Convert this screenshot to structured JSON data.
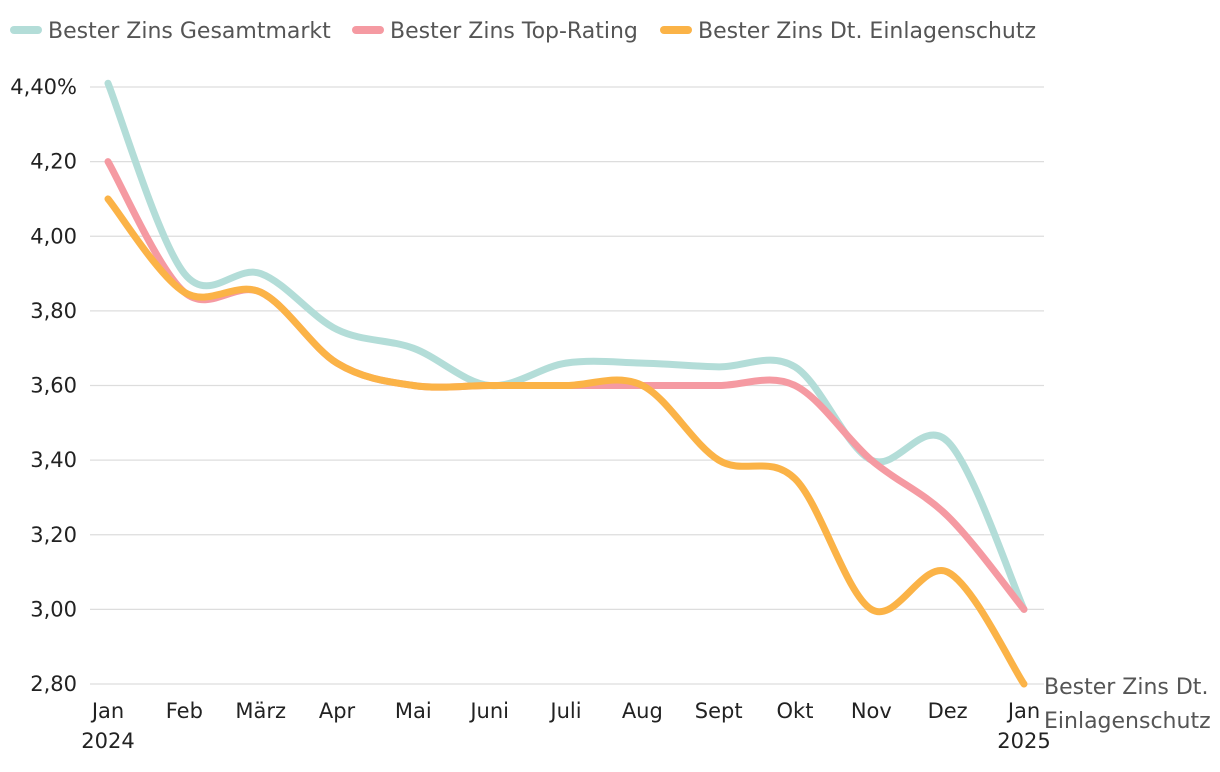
{
  "chart_data": {
    "type": "line",
    "title": "",
    "xlabel": "",
    "ylabel": "",
    "categories": [
      "Jan",
      "Feb",
      "März",
      "Apr",
      "Mai",
      "Juni",
      "Juli",
      "Aug",
      "Sept",
      "Okt",
      "Nov",
      "Dez",
      "Jan"
    ],
    "category_years": [
      "2024",
      "",
      "",
      "",
      "",
      "",
      "",
      "",
      "",
      "",
      "",
      "",
      "2025"
    ],
    "y_ticks": [
      {
        "value": 4.4,
        "label": "4,40%"
      },
      {
        "value": 4.2,
        "label": "4,20"
      },
      {
        "value": 4.0,
        "label": "4,00"
      },
      {
        "value": 3.8,
        "label": "3,80"
      },
      {
        "value": 3.6,
        "label": "3,60"
      },
      {
        "value": 3.4,
        "label": "3,40"
      },
      {
        "value": 3.2,
        "label": "3,20"
      },
      {
        "value": 3.0,
        "label": "3,00"
      },
      {
        "value": 2.8,
        "label": "2,80"
      }
    ],
    "ylim": [
      2.8,
      4.4
    ],
    "grid": true,
    "legend_position": "top",
    "end_label": {
      "series": 2,
      "lines": [
        "Bester Zins Dt.",
        "Einlagenschutz"
      ]
    },
    "series": [
      {
        "name": "Bester Zins Gesamtmarkt",
        "color": "#b3ddd8",
        "values": [
          4.41,
          3.9,
          3.9,
          3.75,
          3.7,
          3.6,
          3.66,
          3.66,
          3.65,
          3.65,
          3.4,
          3.45,
          3.0
        ]
      },
      {
        "name": "Bester Zins Top-Rating",
        "color": "#f59aa2",
        "values": [
          4.2,
          3.85,
          3.85,
          3.66,
          3.6,
          3.6,
          3.6,
          3.6,
          3.6,
          3.6,
          3.4,
          3.25,
          3.0
        ]
      },
      {
        "name": "Bester Zins Dt. Einlagenschutz",
        "color": "#fbb347",
        "values": [
          4.1,
          3.85,
          3.85,
          3.66,
          3.6,
          3.6,
          3.6,
          3.6,
          3.4,
          3.35,
          3.0,
          3.1,
          2.8
        ]
      }
    ]
  }
}
